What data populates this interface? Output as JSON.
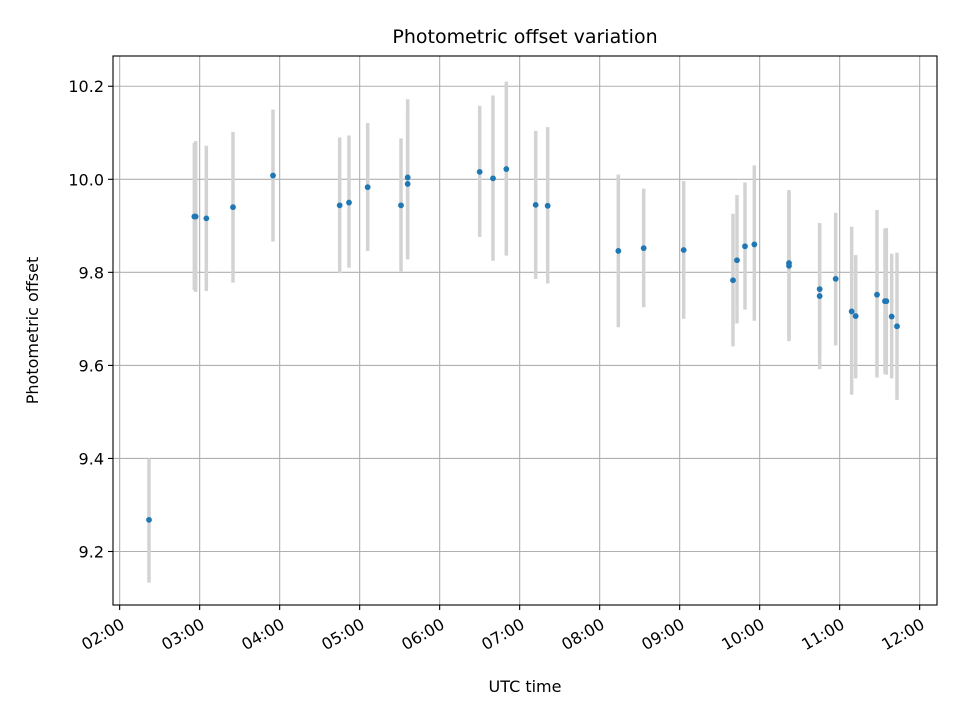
{
  "chart_data": {
    "type": "scatter",
    "title": "Photometric offset variation",
    "xlabel": "UTC time",
    "ylabel": "Photometric offset",
    "x_ticks": [
      "02:00",
      "03:00",
      "04:00",
      "05:00",
      "06:00",
      "07:00",
      "08:00",
      "09:00",
      "10:00",
      "11:00",
      "12:00"
    ],
    "xlim": [
      "01:55",
      "12:13"
    ],
    "y_ticks": [
      "9.2",
      "9.4",
      "9.6",
      "9.8",
      "10.0",
      "10.2"
    ],
    "ylim": [
      9.085,
      10.265
    ],
    "grid": true,
    "colors": {
      "points": "#1f77b4",
      "errorbars": "#d3d3d3",
      "grid": "#b0b0b0"
    },
    "points": [
      {
        "time": "02:22",
        "y": 9.268,
        "lo": 9.133,
        "hi": 9.4
      },
      {
        "time": "02:56",
        "y": 9.92,
        "lo": 9.762,
        "hi": 10.078
      },
      {
        "time": "02:57",
        "y": 9.92,
        "lo": 9.758,
        "hi": 10.082
      },
      {
        "time": "03:05",
        "y": 9.916,
        "lo": 9.76,
        "hi": 10.072
      },
      {
        "time": "03:25",
        "y": 9.94,
        "lo": 9.778,
        "hi": 10.102
      },
      {
        "time": "03:55",
        "y": 10.008,
        "lo": 9.866,
        "hi": 10.15
      },
      {
        "time": "04:45",
        "y": 9.944,
        "lo": 9.798,
        "hi": 10.09
      },
      {
        "time": "04:52",
        "y": 9.95,
        "lo": 9.81,
        "hi": 10.094
      },
      {
        "time": "05:06",
        "y": 9.983,
        "lo": 9.846,
        "hi": 10.121
      },
      {
        "time": "05:31",
        "y": 9.944,
        "lo": 9.802,
        "hi": 10.088
      },
      {
        "time": "05:36",
        "y": 10.004,
        "lo": 9.835,
        "hi": 10.172
      },
      {
        "time": "05:36",
        "y": 9.99,
        "lo": 9.828,
        "hi": 10.152
      },
      {
        "time": "06:30",
        "y": 10.016,
        "lo": 9.876,
        "hi": 10.158
      },
      {
        "time": "06:40",
        "y": 10.002,
        "lo": 9.825,
        "hi": 10.18
      },
      {
        "time": "06:50",
        "y": 10.022,
        "lo": 9.836,
        "hi": 10.21
      },
      {
        "time": "07:12",
        "y": 9.945,
        "lo": 9.786,
        "hi": 10.104
      },
      {
        "time": "07:21",
        "y": 9.943,
        "lo": 9.776,
        "hi": 10.112
      },
      {
        "time": "08:14",
        "y": 9.846,
        "lo": 9.682,
        "hi": 10.01
      },
      {
        "time": "08:33",
        "y": 9.852,
        "lo": 9.725,
        "hi": 9.98
      },
      {
        "time": "09:03",
        "y": 9.848,
        "lo": 9.7,
        "hi": 9.996
      },
      {
        "time": "09:40",
        "y": 9.783,
        "lo": 9.641,
        "hi": 9.926
      },
      {
        "time": "09:43",
        "y": 9.826,
        "lo": 9.69,
        "hi": 9.966
      },
      {
        "time": "09:49",
        "y": 9.856,
        "lo": 9.72,
        "hi": 9.993
      },
      {
        "time": "09:56",
        "y": 9.86,
        "lo": 9.696,
        "hi": 10.03
      },
      {
        "time": "10:22",
        "y": 9.82,
        "lo": 9.652,
        "hi": 9.977
      },
      {
        "time": "10:22",
        "y": 9.814,
        "lo": 9.656,
        "hi": 9.972
      },
      {
        "time": "10:45",
        "y": 9.764,
        "lo": 9.62,
        "hi": 9.905
      },
      {
        "time": "10:45",
        "y": 9.749,
        "lo": 9.592,
        "hi": 9.906
      },
      {
        "time": "10:57",
        "y": 9.786,
        "lo": 9.643,
        "hi": 9.928
      },
      {
        "time": "11:09",
        "y": 9.716,
        "lo": 9.537,
        "hi": 9.898
      },
      {
        "time": "11:12",
        "y": 9.706,
        "lo": 9.572,
        "hi": 9.837
      },
      {
        "time": "11:28",
        "y": 9.752,
        "lo": 9.574,
        "hi": 9.934
      },
      {
        "time": "11:34",
        "y": 9.738,
        "lo": 9.582,
        "hi": 9.894
      },
      {
        "time": "11:35",
        "y": 9.738,
        "lo": 9.58,
        "hi": 9.895
      },
      {
        "time": "11:39",
        "y": 9.705,
        "lo": 9.572,
        "hi": 9.84
      },
      {
        "time": "11:43",
        "y": 9.684,
        "lo": 9.526,
        "hi": 9.842
      }
    ]
  }
}
